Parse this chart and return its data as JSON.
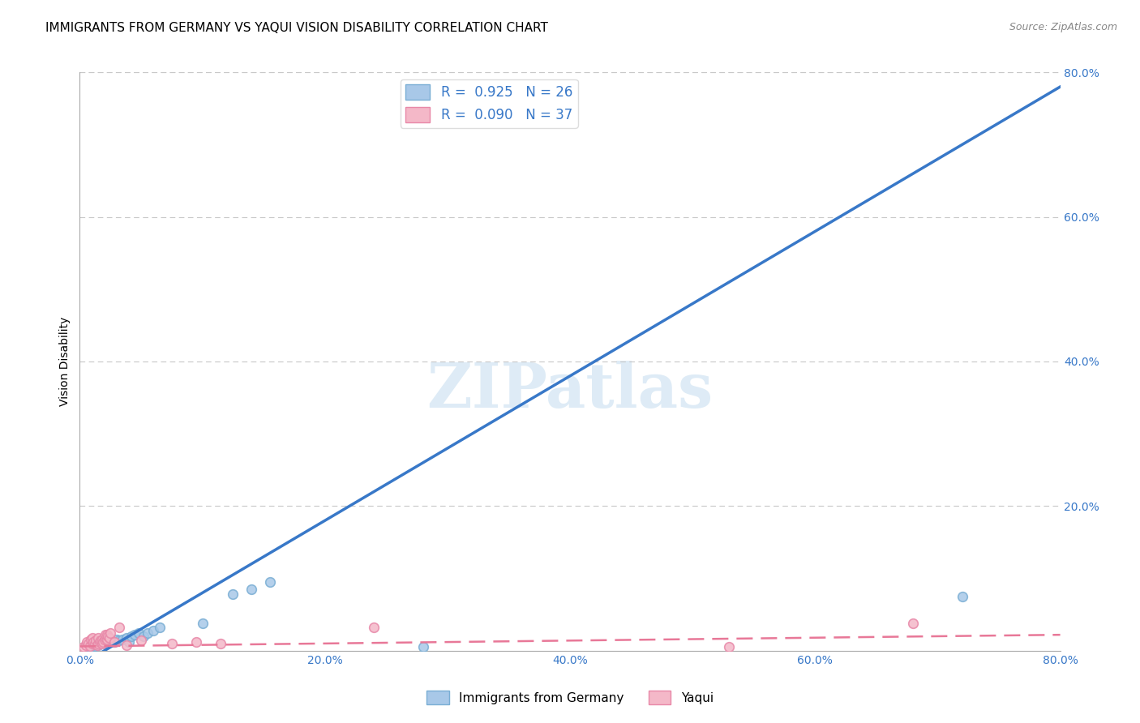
{
  "title": "IMMIGRANTS FROM GERMANY VS YAQUI VISION DISABILITY CORRELATION CHART",
  "source": "Source: ZipAtlas.com",
  "ylabel": "Vision Disability",
  "xlim": [
    0.0,
    0.8
  ],
  "ylim": [
    0.0,
    0.8
  ],
  "xtick_labels": [
    "0.0%",
    "20.0%",
    "40.0%",
    "60.0%",
    "80.0%"
  ],
  "xtick_values": [
    0.0,
    0.2,
    0.4,
    0.6,
    0.8
  ],
  "ytick_labels": [
    "20.0%",
    "40.0%",
    "60.0%",
    "80.0%"
  ],
  "ytick_values": [
    0.2,
    0.4,
    0.6,
    0.8
  ],
  "blue_R": 0.925,
  "blue_N": 26,
  "pink_R": 0.09,
  "pink_N": 37,
  "blue_color": "#a8c8e8",
  "blue_edge_color": "#7aaed4",
  "pink_color": "#f4b8c8",
  "pink_edge_color": "#e888a8",
  "blue_line_color": "#3878c8",
  "pink_line_color": "#e87898",
  "watermark": "ZIPatlas",
  "legend_label_blue": "Immigrants from Germany",
  "legend_label_pink": "Yaqui",
  "blue_scatter_x": [
    0.008,
    0.012,
    0.015,
    0.018,
    0.02,
    0.022,
    0.025,
    0.028,
    0.03,
    0.032,
    0.035,
    0.038,
    0.04,
    0.042,
    0.045,
    0.048,
    0.052,
    0.055,
    0.06,
    0.065,
    0.1,
    0.125,
    0.14,
    0.155,
    0.28,
    0.72
  ],
  "blue_scatter_y": [
    0.004,
    0.006,
    0.008,
    0.01,
    0.012,
    0.01,
    0.013,
    0.012,
    0.015,
    0.014,
    0.015,
    0.018,
    0.012,
    0.02,
    0.022,
    0.024,
    0.02,
    0.025,
    0.028,
    0.032,
    0.038,
    0.078,
    0.085,
    0.095,
    0.005,
    0.075
  ],
  "pink_scatter_x": [
    0.003,
    0.005,
    0.006,
    0.007,
    0.008,
    0.009,
    0.01,
    0.01,
    0.011,
    0.012,
    0.013,
    0.014,
    0.015,
    0.015,
    0.016,
    0.017,
    0.018,
    0.018,
    0.019,
    0.02,
    0.021,
    0.021,
    0.022,
    0.022,
    0.023,
    0.024,
    0.025,
    0.028,
    0.032,
    0.038,
    0.05,
    0.075,
    0.095,
    0.115,
    0.24,
    0.53,
    0.68
  ],
  "pink_scatter_y": [
    0.005,
    0.008,
    0.012,
    0.01,
    0.006,
    0.015,
    0.01,
    0.018,
    0.012,
    0.01,
    0.014,
    0.008,
    0.01,
    0.018,
    0.012,
    0.014,
    0.01,
    0.016,
    0.012,
    0.015,
    0.018,
    0.022,
    0.016,
    0.022,
    0.02,
    0.018,
    0.025,
    0.012,
    0.032,
    0.008,
    0.014,
    0.01,
    0.012,
    0.01,
    0.032,
    0.005,
    0.038
  ],
  "blue_line_x": [
    0.0,
    0.8
  ],
  "blue_line_y": [
    -0.02,
    0.78
  ],
  "pink_line_x": [
    0.0,
    0.8
  ],
  "pink_line_y": [
    0.006,
    0.022
  ],
  "background_color": "#ffffff",
  "grid_color": "#c8c8c8",
  "title_fontsize": 11,
  "axis_label_fontsize": 10,
  "tick_fontsize": 10,
  "marker_size": 70
}
